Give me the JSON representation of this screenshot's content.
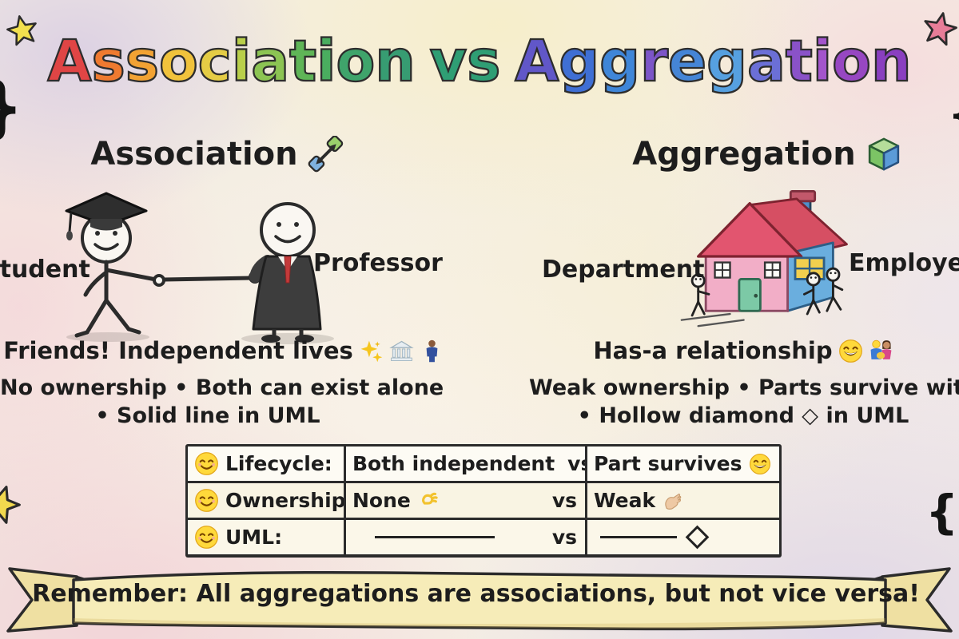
{
  "title": {
    "word1": "Association",
    "word2": "vs",
    "word3": "Aggregation",
    "word1_colors": [
      "#e04545",
      "#ef7a30",
      "#f2a233",
      "#f0c23c",
      "#e4cc45",
      "#b9cf4a",
      "#8cc453",
      "#5fb557",
      "#4aad5f",
      "#3fa46b",
      "#379c72"
    ],
    "word2_color": "#2f9e74",
    "word3_colors": [
      "#6157c8",
      "#3f6fd4",
      "#3f86d8",
      "#7c55c8",
      "#4585d6",
      "#56a0e0",
      "#6b6fd6",
      "#8a52c8",
      "#a355cc",
      "#9747c2",
      "#8a3fc0"
    ]
  },
  "association": {
    "heading": "Association",
    "label_left": "Student",
    "label_right": "Professor",
    "caption": "Friends! Independent lives",
    "point1": "No ownership • Both can exist alone",
    "point2": "• Solid line in UML"
  },
  "aggregation": {
    "heading": "Aggregation",
    "label_left": "Department",
    "label_right": "Employees",
    "caption": "Has-a relationship",
    "point1": "Weak ownership • Parts survive without whole",
    "point2": "• Hollow diamond ◇ in UML"
  },
  "comparison_table": {
    "rows": [
      {
        "label": "Lifecycle:",
        "association": "Both independent",
        "vs": "vs",
        "aggregation": "Part survives"
      },
      {
        "label": "Ownership:",
        "association": "None",
        "vs": "vs",
        "aggregation": "Weak"
      },
      {
        "label": "UML:",
        "association": "",
        "vs": "vs",
        "aggregation": ""
      }
    ]
  },
  "banner": {
    "text": "Remember: All aggregations are associations, but not vice versa!"
  },
  "icons": {
    "association_heading": "diagonal-link-arrows",
    "aggregation_heading": "green-blue-cube",
    "association_caption": [
      "sparkles",
      "classical-building",
      "person-standing"
    ],
    "aggregation_caption": [
      "grinning-face",
      "two-people"
    ],
    "table_row_marker": "smiling-face",
    "lifecycle_association": "smiling-face",
    "lifecycle_aggregation": "grinning-face",
    "ownership_association": "ok-hand",
    "ownership_aggregation": "pinching-hand",
    "banner_end": "glowing-spark"
  },
  "colors": {
    "table_bg": "#fcf9ee",
    "banner_fill": "#f6ecb8",
    "ink": "#242424"
  }
}
